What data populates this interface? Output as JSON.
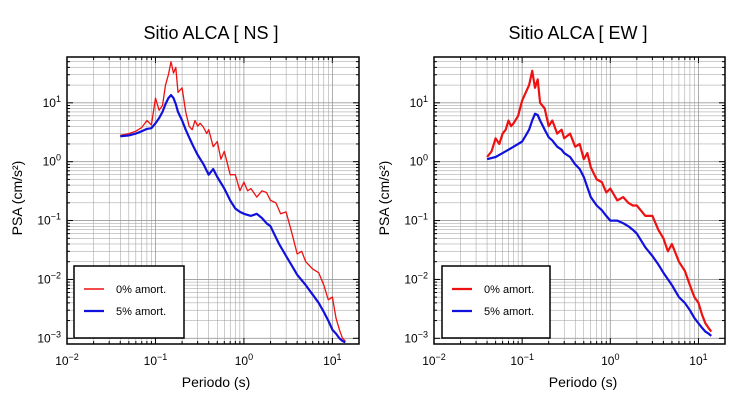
{
  "colors": {
    "undamped": "#ee1111",
    "damped": "#1111dd",
    "grid": "#9a9a9a",
    "frame": "#000000"
  },
  "chart_data": [
    {
      "type": "line",
      "title": "Sitio ALCA [ NS ]",
      "xlabel": "Periodo (s)",
      "ylabel": "PSA (cm/s²)",
      "xscale": "log",
      "yscale": "log",
      "xlim": [
        0.01,
        20
      ],
      "ylim": [
        0.0008,
        60
      ],
      "xticks": [
        {
          "value": 0.01,
          "base": "10",
          "exp": "−2"
        },
        {
          "value": 0.1,
          "base": "10",
          "exp": "−1"
        },
        {
          "value": 1,
          "base": "10",
          "exp": "0"
        },
        {
          "value": 10,
          "base": "10",
          "exp": "1"
        }
      ],
      "yticks": [
        {
          "value": 0.001,
          "base": "10",
          "exp": "−3"
        },
        {
          "value": 0.01,
          "base": "10",
          "exp": "−2"
        },
        {
          "value": 0.1,
          "base": "10",
          "exp": "−1"
        },
        {
          "value": 1,
          "base": "10",
          "exp": "0"
        },
        {
          "value": 10,
          "base": "10",
          "exp": "1"
        }
      ],
      "grid": true,
      "legend_position": "bottom-left",
      "series": [
        {
          "name": "0% amort.",
          "color": "#ee1111",
          "x": [
            0.04,
            0.05,
            0.06,
            0.07,
            0.08,
            0.09,
            0.1,
            0.11,
            0.12,
            0.13,
            0.14,
            0.15,
            0.16,
            0.17,
            0.18,
            0.2,
            0.22,
            0.24,
            0.26,
            0.28,
            0.3,
            0.32,
            0.35,
            0.38,
            0.4,
            0.45,
            0.5,
            0.55,
            0.6,
            0.7,
            0.8,
            0.9,
            1.0,
            1.1,
            1.2,
            1.4,
            1.6,
            1.8,
            2.0,
            2.3,
            2.6,
            3.0,
            3.5,
            4.0,
            4.5,
            5.0,
            6.0,
            7.0,
            8.0,
            9.0,
            10,
            11,
            12,
            13,
            14
          ],
          "y": [
            2.8,
            3.0,
            3.3,
            3.8,
            5.0,
            4.2,
            12,
            7.5,
            9,
            20,
            30,
            50,
            32,
            40,
            15,
            18,
            7,
            4,
            3.5,
            5,
            4,
            4.5,
            3.8,
            3,
            3.5,
            1.8,
            2.2,
            1.1,
            1.5,
            0.6,
            0.6,
            0.32,
            0.45,
            0.32,
            0.35,
            0.25,
            0.32,
            0.3,
            0.22,
            0.2,
            0.13,
            0.14,
            0.06,
            0.027,
            0.03,
            0.02,
            0.015,
            0.013,
            0.008,
            0.0045,
            0.005,
            0.0022,
            0.0014,
            0.001,
            0.0009
          ]
        },
        {
          "name": "5% amort.",
          "color": "#1111dd",
          "x": [
            0.04,
            0.05,
            0.06,
            0.07,
            0.08,
            0.09,
            0.1,
            0.11,
            0.12,
            0.13,
            0.14,
            0.15,
            0.16,
            0.17,
            0.18,
            0.2,
            0.22,
            0.24,
            0.26,
            0.28,
            0.3,
            0.35,
            0.4,
            0.45,
            0.5,
            0.6,
            0.7,
            0.8,
            0.9,
            1.0,
            1.2,
            1.4,
            1.6,
            1.8,
            2.0,
            2.5,
            3.0,
            3.5,
            4.0,
            5.0,
            6.0,
            7.0,
            8.0,
            9.0,
            10,
            11,
            12,
            13,
            14
          ],
          "y": [
            2.7,
            2.8,
            3.0,
            3.3,
            3.6,
            3.7,
            4.5,
            5.5,
            7,
            9.5,
            12,
            13.5,
            12,
            9.5,
            7,
            5,
            3.5,
            2.6,
            2.0,
            1.6,
            1.3,
            0.9,
            0.6,
            0.75,
            0.55,
            0.35,
            0.22,
            0.16,
            0.14,
            0.13,
            0.12,
            0.13,
            0.11,
            0.09,
            0.08,
            0.04,
            0.025,
            0.017,
            0.012,
            0.008,
            0.0055,
            0.004,
            0.0028,
            0.002,
            0.0014,
            0.0012,
            0.001,
            0.0009,
            0.00085
          ]
        }
      ]
    },
    {
      "type": "line",
      "title": "Sitio ALCA [ EW ]",
      "xlabel": "Periodo (s)",
      "ylabel": "PSA (cm/s²)",
      "xscale": "log",
      "yscale": "log",
      "xlim": [
        0.01,
        20
      ],
      "ylim": [
        0.0008,
        60
      ],
      "xticks": [
        {
          "value": 0.01,
          "base": "10",
          "exp": "−2"
        },
        {
          "value": 0.1,
          "base": "10",
          "exp": "−1"
        },
        {
          "value": 1,
          "base": "10",
          "exp": "0"
        },
        {
          "value": 10,
          "base": "10",
          "exp": "1"
        }
      ],
      "yticks": [
        {
          "value": 0.001,
          "base": "10",
          "exp": "−3"
        },
        {
          "value": 0.01,
          "base": "10",
          "exp": "−2"
        },
        {
          "value": 0.1,
          "base": "10",
          "exp": "−1"
        },
        {
          "value": 1,
          "base": "10",
          "exp": "0"
        },
        {
          "value": 10,
          "base": "10",
          "exp": "1"
        }
      ],
      "grid": true,
      "legend_position": "bottom-left",
      "series": [
        {
          "name": "0% amort.",
          "color": "#ee1111",
          "x": [
            0.04,
            0.045,
            0.05,
            0.055,
            0.06,
            0.065,
            0.07,
            0.075,
            0.08,
            0.09,
            0.1,
            0.11,
            0.12,
            0.13,
            0.14,
            0.15,
            0.16,
            0.18,
            0.2,
            0.22,
            0.25,
            0.28,
            0.3,
            0.35,
            0.4,
            0.45,
            0.5,
            0.55,
            0.6,
            0.7,
            0.8,
            0.9,
            1.0,
            1.2,
            1.4,
            1.6,
            1.8,
            2.0,
            2.5,
            3.0,
            3.5,
            4.0,
            4.5,
            5.0,
            6.0,
            7.0,
            8.0,
            9.0,
            10,
            11,
            12,
            13,
            14
          ],
          "y": [
            1.2,
            1.5,
            2.5,
            2.0,
            3.0,
            3.5,
            5.0,
            4.0,
            4.5,
            6,
            11,
            15,
            20,
            35,
            18,
            25,
            10,
            8,
            4,
            5,
            3,
            3.5,
            2.5,
            3,
            1.8,
            2.0,
            1.1,
            1.4,
            0.8,
            0.5,
            0.45,
            0.3,
            0.35,
            0.22,
            0.25,
            0.2,
            0.18,
            0.18,
            0.12,
            0.12,
            0.07,
            0.05,
            0.03,
            0.04,
            0.02,
            0.014,
            0.008,
            0.005,
            0.004,
            0.0025,
            0.0018,
            0.0015,
            0.0013
          ]
        },
        {
          "name": "5% amort.",
          "color": "#1111dd",
          "x": [
            0.04,
            0.05,
            0.06,
            0.07,
            0.08,
            0.09,
            0.1,
            0.11,
            0.12,
            0.13,
            0.14,
            0.15,
            0.16,
            0.18,
            0.2,
            0.22,
            0.25,
            0.28,
            0.3,
            0.35,
            0.4,
            0.45,
            0.5,
            0.6,
            0.7,
            0.8,
            0.9,
            1.0,
            1.2,
            1.4,
            1.6,
            1.8,
            2.0,
            2.5,
            3.0,
            3.5,
            4.0,
            5.0,
            6.0,
            7.0,
            8.0,
            9.0,
            10,
            11,
            12,
            13,
            14
          ],
          "y": [
            1.1,
            1.2,
            1.4,
            1.6,
            1.8,
            2.0,
            2.2,
            2.8,
            3.5,
            5,
            6.5,
            6.2,
            5,
            3.5,
            2.6,
            2.3,
            1.8,
            1.6,
            1.4,
            1.2,
            0.9,
            0.75,
            0.55,
            0.25,
            0.18,
            0.15,
            0.12,
            0.1,
            0.1,
            0.09,
            0.08,
            0.07,
            0.06,
            0.035,
            0.025,
            0.018,
            0.013,
            0.008,
            0.005,
            0.004,
            0.003,
            0.0022,
            0.0018,
            0.0015,
            0.0013,
            0.0012,
            0.0011
          ]
        }
      ]
    }
  ]
}
